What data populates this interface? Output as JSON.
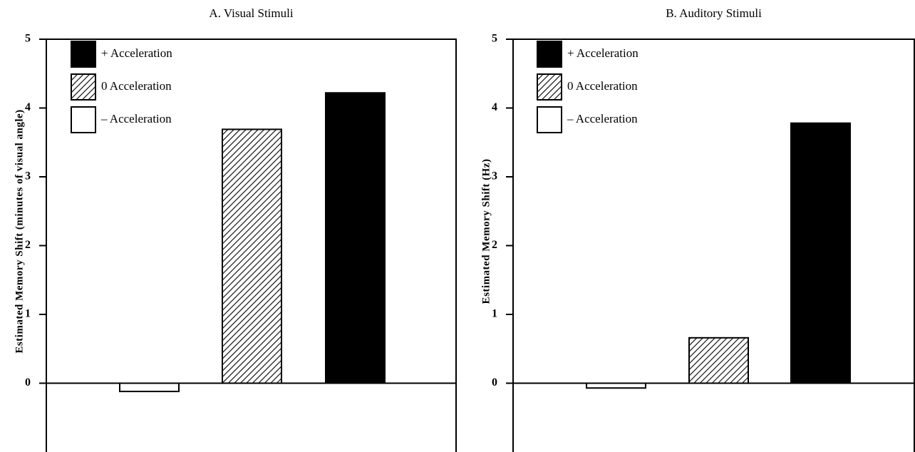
{
  "chart_data": [
    {
      "type": "bar",
      "title": "A. Visual Stimuli",
      "y_label": "Estimated Memory Shift (minutes of visual angle)",
      "ylim": [
        -1,
        5
      ],
      "yticks": [
        0,
        1,
        2,
        3,
        4,
        5
      ],
      "series": [
        {
          "name": "+ Acceleration",
          "color": "#000000",
          "pattern": "solid",
          "values": [
            4.22
          ]
        },
        {
          "name": "0 Acceleration",
          "color": "#000000",
          "pattern": "hatch",
          "values": [
            3.69
          ]
        },
        {
          "name": "– Acceleration",
          "color": "#ffffff",
          "pattern": "solid",
          "values": [
            -0.12
          ]
        }
      ]
    },
    {
      "type": "bar",
      "title": "B. Auditory Stimuli",
      "y_label": "Estimated Memory Shift (Hz)",
      "ylim": [
        -1,
        5
      ],
      "yticks": [
        0,
        1,
        2,
        3,
        4,
        5
      ],
      "series": [
        {
          "name": "+ Acceleration",
          "color": "#000000",
          "pattern": "solid",
          "values": [
            3.78
          ]
        },
        {
          "name": "0 Acceleration",
          "color": "#000000",
          "pattern": "hatch",
          "values": [
            0.66
          ]
        },
        {
          "name": "– Acceleration",
          "color": "#ffffff",
          "pattern": "solid",
          "values": [
            -0.07
          ]
        }
      ]
    }
  ]
}
